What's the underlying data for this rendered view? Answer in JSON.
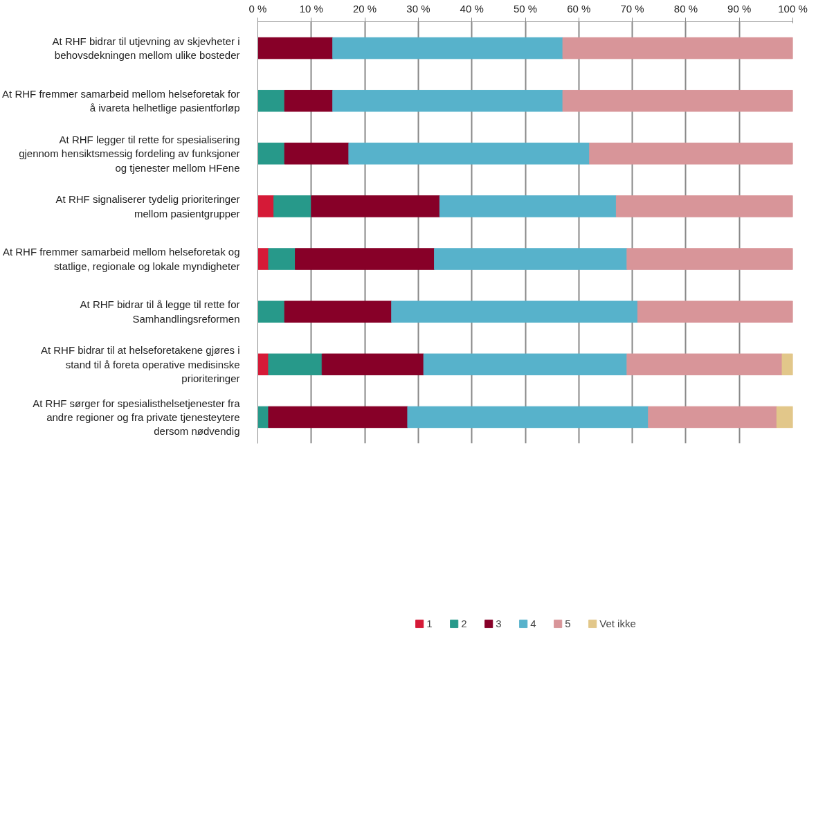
{
  "chart_data": {
    "type": "bar",
    "orientation": "horizontal",
    "stacked": true,
    "categories": [
      "At RHF bidrar til utjevning av skjevheter i behovsdekningen mellom ulike bosteder",
      "At RHF fremmer samarbeid mellom helseforetak for å ivareta helhetlige pasientforløp",
      "At RHF legger til rette for spesialisering gjennom hensiktsmessig fordeling av funksjoner og tjenester mellom HFene",
      "At RHF signaliserer tydelig prioriteringer mellom pasientgrupper",
      "At RHF fremmer samarbeid mellom helseforetak og statlige, regionale og lokale myndigheter",
      "At RHF bidrar til å legge til rette for Samhandlingsreformen",
      "At RHF bidrar til at helseforetakene gjøres i stand til å foreta operative medisinske prioriteringer",
      "At RHF sørger for spesialisthelsetjenester fra andre regioner og fra private tjenesteytere dersom nødvendig"
    ],
    "series": [
      {
        "name": "1",
        "color": "#d51a37",
        "values": [
          null,
          null,
          null,
          3,
          2,
          null,
          2,
          null
        ]
      },
      {
        "name": "2",
        "color": "#27998a",
        "values": [
          null,
          5,
          5,
          7,
          5,
          5,
          10,
          2
        ]
      },
      {
        "name": "3",
        "color": "#870028",
        "values": [
          14,
          9,
          12,
          24,
          26,
          20,
          19,
          26
        ]
      },
      {
        "name": "4",
        "color": "#57b2cb",
        "values": [
          43,
          43,
          45,
          33,
          36,
          46,
          38,
          45
        ]
      },
      {
        "name": "5",
        "color": "#d89599",
        "values": [
          43,
          43,
          38,
          33,
          31,
          29,
          29,
          24
        ]
      },
      {
        "name": "Vet ikke",
        "color": "#e2c78a",
        "values": [
          null,
          null,
          null,
          null,
          null,
          null,
          2,
          3
        ]
      }
    ],
    "xlim": [
      0,
      100
    ],
    "xticks": [
      {
        "value": 0,
        "label": "0 %"
      },
      {
        "value": 10,
        "label": "10 %"
      },
      {
        "value": 20,
        "label": "20 %"
      },
      {
        "value": 30,
        "label": "30 %"
      },
      {
        "value": 40,
        "label": "40 %"
      },
      {
        "value": 50,
        "label": "50 %"
      },
      {
        "value": 60,
        "label": "60 %"
      },
      {
        "value": 70,
        "label": "70 %"
      },
      {
        "value": 80,
        "label": "80 %"
      },
      {
        "value": 90,
        "label": "90 %"
      },
      {
        "value": 100,
        "label": "100 %"
      }
    ],
    "grid": "x",
    "legend": "bottom"
  }
}
